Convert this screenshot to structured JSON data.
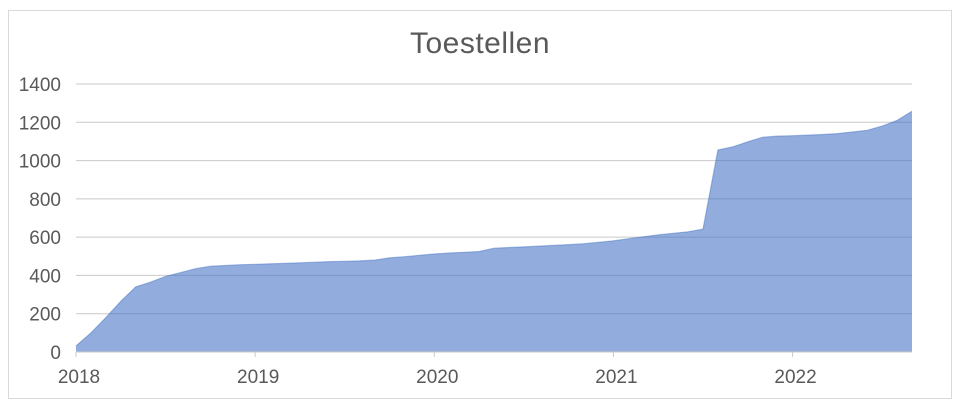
{
  "chart": {
    "title": "Toestellen"
  },
  "chart_data": {
    "type": "area",
    "title": "Toestellen",
    "xlabel": "",
    "ylabel": "",
    "ylim": [
      0,
      1400
    ],
    "y_ticks": [
      0,
      200,
      400,
      600,
      800,
      1000,
      1200,
      1400
    ],
    "x_tick_labels": [
      "2018",
      "2019",
      "2020",
      "2021",
      "2022"
    ],
    "x_ticks_months_interval": 12,
    "grid": "horizontal",
    "legend": "none",
    "series": [
      {
        "name": "Toestellen",
        "start": "2018-01",
        "interval": "month",
        "values": [
          32,
          100,
          180,
          265,
          340,
          365,
          395,
          415,
          435,
          448,
          452,
          456,
          458,
          461,
          463,
          466,
          469,
          472,
          474,
          476,
          480,
          492,
          498,
          505,
          512,
          517,
          521,
          525,
          542,
          546,
          549,
          553,
          557,
          561,
          566,
          573,
          581,
          592,
          602,
          612,
          620,
          628,
          642,
          1055,
          1072,
          1098,
          1122,
          1128,
          1130,
          1133,
          1136,
          1141,
          1149,
          1158,
          1180,
          1210,
          1258
        ]
      }
    ],
    "colors": {
      "area_fill": "#4472C4",
      "area_fill_opacity": 0.58,
      "area_edge": "#4472C4",
      "area_edge_opacity": 0.45,
      "gridline": "#c9c9c9",
      "axis_line": "#c9c9c9",
      "tick_mark": "#c9c9c9",
      "label_text": "#595959",
      "frame_border": "#d9d9d9",
      "background": "#ffffff"
    }
  }
}
